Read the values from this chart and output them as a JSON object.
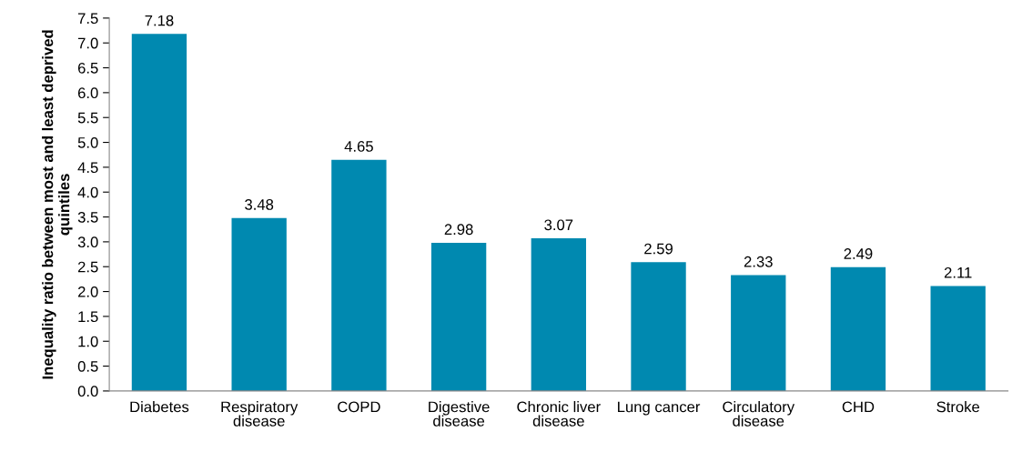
{
  "chart_data": {
    "type": "bar",
    "ylabel": "Inequality ratio between most and least deprived quintiles",
    "categories": [
      "Diabetes",
      "Respiratory\ndisease",
      "COPD",
      "Digestive\ndisease",
      "Chronic liver\ndisease",
      "Lung cancer",
      "Circulatory\ndisease",
      "CHD",
      "Stroke"
    ],
    "values": [
      7.18,
      3.48,
      4.65,
      2.98,
      3.07,
      2.59,
      2.33,
      2.49,
      2.11
    ],
    "color": "#0089b0",
    "data_labels": true,
    "grid": false,
    "legend": false,
    "ylim": [
      0,
      7.5
    ],
    "yticks": [
      {
        "value": 0,
        "label": "0.0"
      },
      {
        "value": 0.5,
        "label": "0.5"
      },
      {
        "value": 1,
        "label": "1.0"
      },
      {
        "value": 1.5,
        "label": "1.5"
      },
      {
        "value": 2,
        "label": "2.0"
      },
      {
        "value": 2.5,
        "label": "2.5"
      },
      {
        "value": 3,
        "label": "3.0"
      },
      {
        "value": 3.5,
        "label": "3.5"
      },
      {
        "value": 4,
        "label": "4.0"
      },
      {
        "value": 4.5,
        "label": "4.5"
      },
      {
        "value": 5,
        "label": "5.0"
      },
      {
        "value": 5.5,
        "label": "5.5"
      },
      {
        "value": 6,
        "label": "6.0"
      },
      {
        "value": 6.5,
        "label": "6.5"
      },
      {
        "value": 7,
        "label": "7.0"
      },
      {
        "value": 7.5,
        "label": "7.5"
      }
    ]
  }
}
